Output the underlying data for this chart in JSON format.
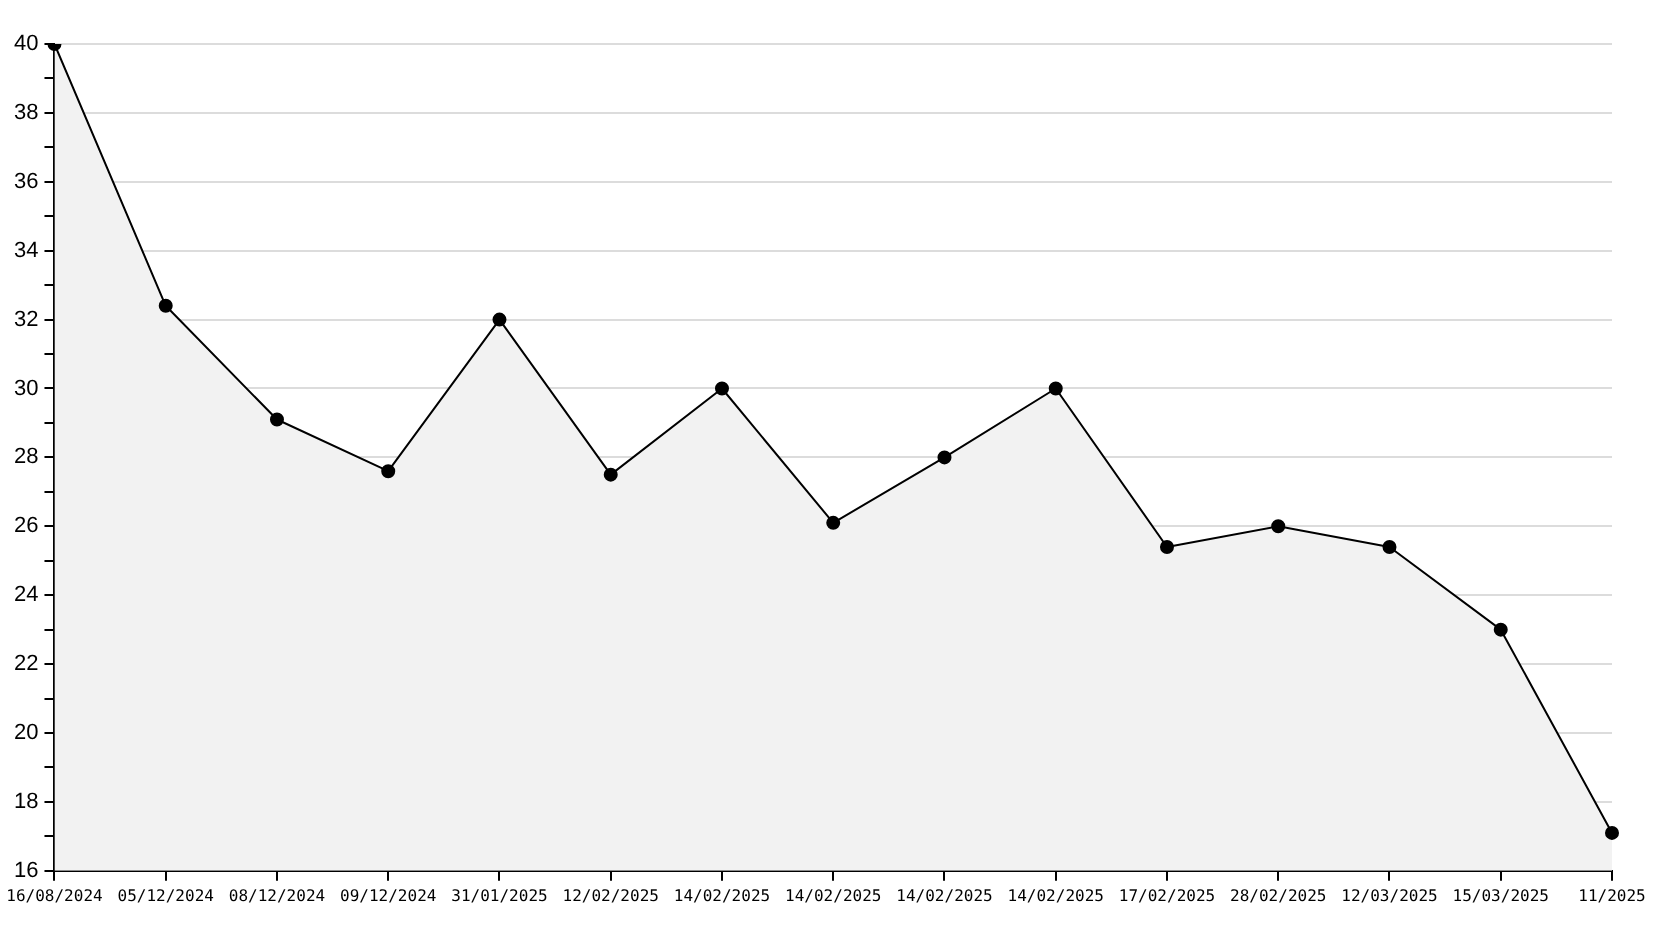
{
  "chart_data": {
    "type": "area",
    "categories": [
      "16/08/2024",
      "05/12/2024",
      "08/12/2024",
      "09/12/2024",
      "31/01/2025",
      "12/02/2025",
      "14/02/2025",
      "14/02/2025",
      "14/02/2025",
      "14/02/2025",
      "17/02/2025",
      "28/02/2025",
      "12/03/2025",
      "15/03/2025",
      "11/2025"
    ],
    "series": [
      {
        "color": "#000000",
        "values": [
          40,
          32.4,
          29.1,
          27.6,
          32,
          27.5,
          30,
          26.1,
          28,
          30,
          25.4,
          26,
          25.4,
          23,
          17.1
        ]
      }
    ],
    "ylim": [
      16,
      40
    ],
    "yticks": [
      16,
      {
        "value": 17,
        "label": null
      },
      18,
      {
        "value": 19,
        "label": null
      },
      20,
      {
        "value": 21,
        "label": null
      },
      22,
      {
        "value": 23,
        "label": null
      },
      24,
      {
        "value": 25,
        "label": null
      },
      26,
      {
        "value": 27,
        "label": null
      },
      28,
      {
        "value": 29,
        "label": null
      },
      30,
      {
        "value": 31,
        "label": null
      },
      32,
      {
        "value": 33,
        "label": null
      },
      34,
      {
        "value": 35,
        "label": null
      },
      36,
      {
        "value": 37,
        "label": null
      },
      38,
      {
        "value": 39,
        "label": null
      },
      40
    ],
    "grid": "y",
    "legend": false,
    "marker": "circle",
    "line_style": "solid"
  }
}
